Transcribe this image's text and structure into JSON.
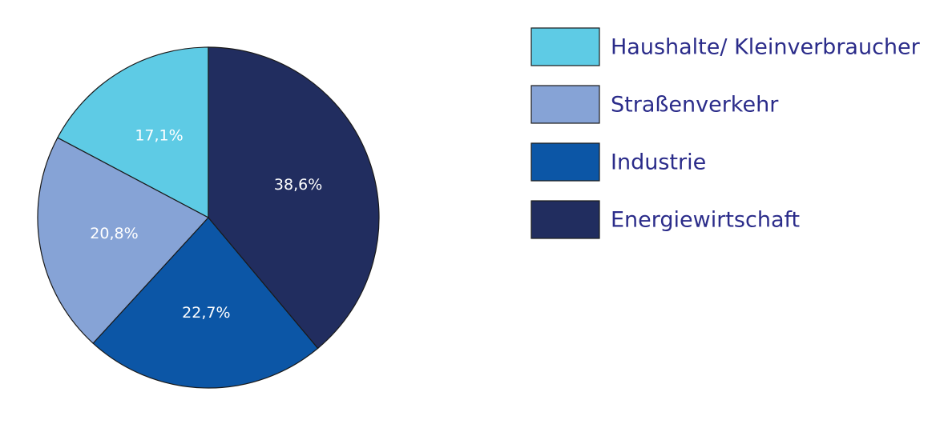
{
  "chart_data": {
    "type": "pie",
    "categories": [
      "Haushalte/ Kleinverbraucher",
      "Straßenverkehr",
      "Industrie",
      "Energiewirtschaft"
    ],
    "values": [
      17.1,
      20.8,
      22.7,
      38.6
    ],
    "value_labels": [
      "17,1%",
      "20,8%",
      "22,7%",
      "38,6%"
    ],
    "colors": [
      "#5ecbe5",
      "#86a3d6",
      "#0c56a6",
      "#212d5f"
    ]
  }
}
